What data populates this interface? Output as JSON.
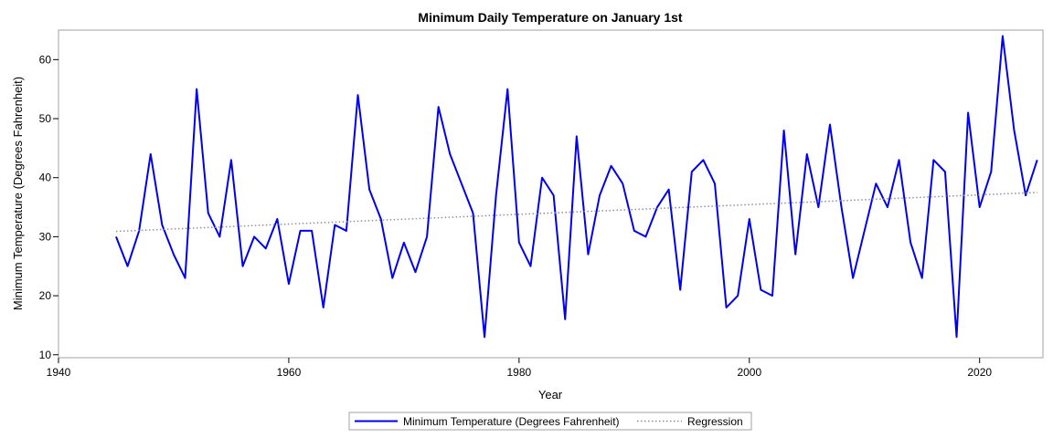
{
  "chart_data": {
    "type": "line",
    "title": "Minimum Daily Temperature on January 1st",
    "xlabel": "Year",
    "ylabel": "Minimum Temperature (Degrees Fahrenheit)",
    "xlim": [
      1940,
      2025.5
    ],
    "ylim": [
      9.5,
      65
    ],
    "xticks": [
      1940,
      1960,
      1980,
      2000,
      2020
    ],
    "yticks": [
      10,
      20,
      30,
      40,
      50,
      60
    ],
    "grid": false,
    "legend_position": "bottom-center",
    "series": [
      {
        "name": "Minimum Temperature (Degrees Fahrenheit)",
        "color": "#0000ee",
        "style": "solid",
        "x": [
          1945,
          1946,
          1947,
          1948,
          1949,
          1950,
          1951,
          1952,
          1953,
          1954,
          1955,
          1956,
          1957,
          1958,
          1959,
          1960,
          1961,
          1962,
          1963,
          1964,
          1965,
          1966,
          1967,
          1968,
          1969,
          1970,
          1971,
          1972,
          1973,
          1974,
          1975,
          1976,
          1977,
          1978,
          1979,
          1980,
          1981,
          1982,
          1983,
          1984,
          1985,
          1986,
          1987,
          1988,
          1989,
          1990,
          1991,
          1992,
          1993,
          1994,
          1995,
          1996,
          1997,
          1998,
          1999,
          2000,
          2001,
          2002,
          2003,
          2004,
          2005,
          2006,
          2007,
          2008,
          2009,
          2010,
          2011,
          2012,
          2013,
          2014,
          2015,
          2016,
          2017,
          2018,
          2019,
          2020,
          2021,
          2022,
          2023,
          2024,
          2025
        ],
        "values": [
          30,
          25,
          31,
          44,
          32,
          27,
          23,
          55,
          34,
          30,
          43,
          25,
          30,
          28,
          33,
          22,
          31,
          31,
          18,
          32,
          31,
          54,
          38,
          33,
          23,
          29,
          24,
          30,
          52,
          44,
          39,
          34,
          13,
          37,
          55,
          29,
          25,
          40,
          37,
          16,
          47,
          27,
          37,
          42,
          39,
          31,
          30,
          35,
          38,
          21,
          41,
          43,
          39,
          18,
          20,
          33,
          21,
          20,
          48,
          27,
          44,
          35,
          49,
          35,
          23,
          31,
          39,
          35,
          43,
          29,
          23,
          43,
          41,
          13,
          51,
          35,
          41,
          64,
          48,
          37,
          43
        ]
      },
      {
        "name": "Regression",
        "color": "#8f8f9f",
        "style": "dotted",
        "x": [
          1945,
          2025
        ],
        "values": [
          30.9,
          37.5
        ]
      }
    ]
  }
}
